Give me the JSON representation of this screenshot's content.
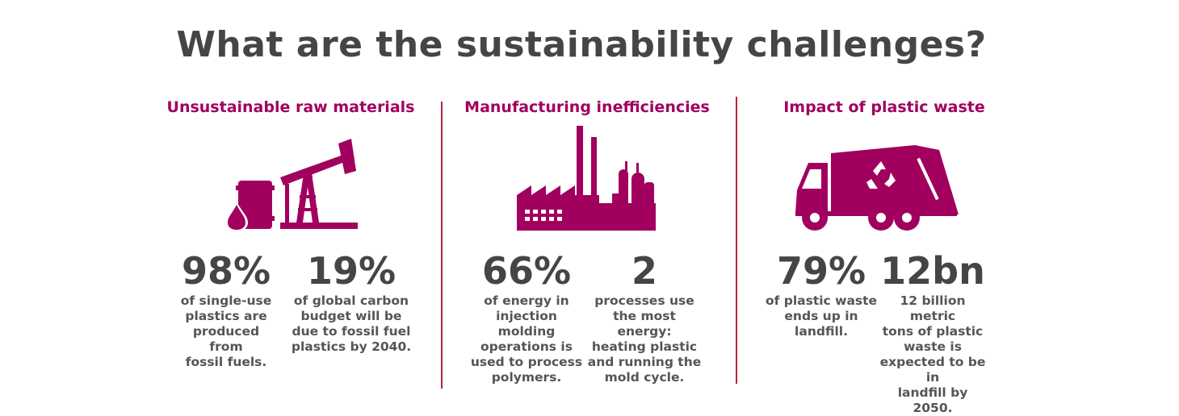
{
  "title": "What are the sustainability challenges?",
  "colors": {
    "accent": "#a1005f",
    "text": "#454545",
    "divider": "#b3223a"
  },
  "columns": [
    {
      "heading": "Unsustainable raw materials",
      "icon": "oil-pump-icon",
      "stats": [
        {
          "value": "98%",
          "desc": [
            "of single-use",
            "plastics are",
            "produced from",
            "fossil fuels."
          ]
        },
        {
          "value": "19%",
          "desc": [
            "of global carbon",
            "budget will be",
            "due to fossil fuel",
            "plastics by 2040."
          ]
        }
      ]
    },
    {
      "heading": "Manufacturing inefficiencies",
      "icon": "factory-icon",
      "stats": [
        {
          "value": "66%",
          "desc": [
            "of energy in",
            "injection",
            "molding",
            "operations is",
            "used to process",
            "polymers."
          ]
        },
        {
          "value": "2",
          "desc": [
            "processes use",
            "the most energy:",
            "heating plastic",
            "and running the",
            "mold cycle."
          ]
        }
      ]
    },
    {
      "heading": "Impact of plastic waste",
      "icon": "garbage-truck-icon",
      "stats": [
        {
          "value": "79%",
          "desc": [
            "of plastic waste",
            "ends up in",
            "landfill."
          ]
        },
        {
          "value": "12bn",
          "desc": [
            "12 billion metric",
            "tons of plastic",
            "waste is",
            "expected to be in",
            "landfill by 2050."
          ]
        }
      ]
    }
  ]
}
